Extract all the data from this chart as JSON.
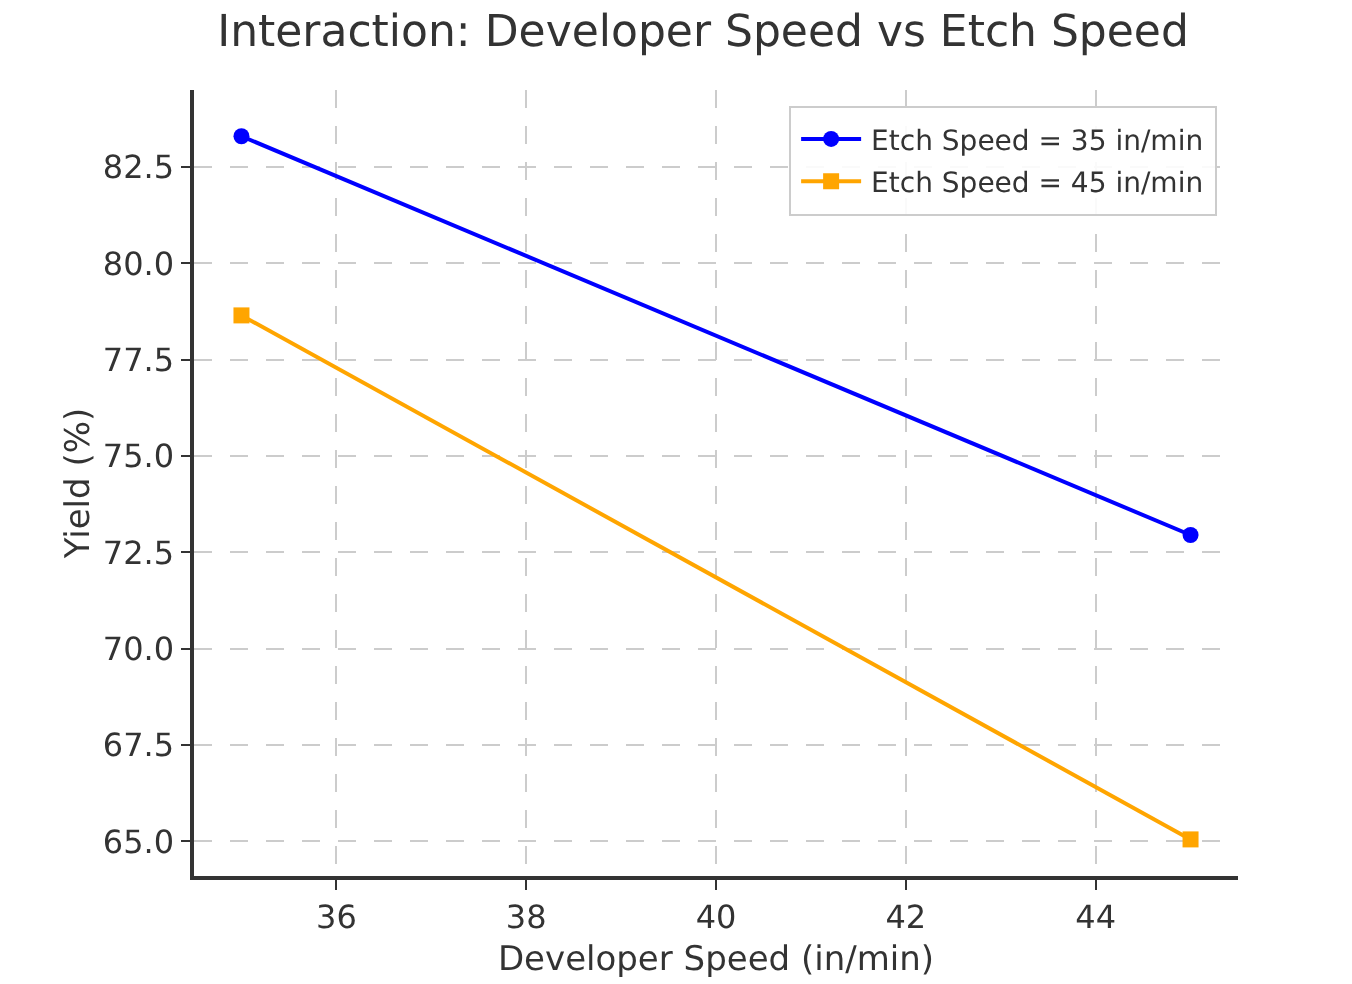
{
  "chart_data": {
    "type": "line",
    "title": "Interaction: Developer Speed vs Etch Speed",
    "xlabel": "Developer Speed (in/min)",
    "ylabel": "Yield (%)",
    "x": [
      35,
      45
    ],
    "series": [
      {
        "name": "Etch Speed = 35 in/min",
        "color": "#0000ff",
        "values": [
          83.3,
          72.95
        ],
        "marker": "circle"
      },
      {
        "name": "Etch Speed = 45 in/min",
        "color": "#ffa500",
        "values": [
          78.65,
          65.05
        ],
        "marker": "square"
      }
    ],
    "xlim": [
      34.5,
      45.5
    ],
    "xticks": [
      36,
      38,
      40,
      42,
      44
    ],
    "ylim": [
      64.1,
      84.5
    ],
    "yticks": [
      {
        "value": 65,
        "label": "65.0"
      },
      {
        "value": 67.5,
        "label": "67.5"
      },
      {
        "value": 70,
        "label": "70.0"
      },
      {
        "value": 72.5,
        "label": "72.5"
      },
      {
        "value": 75,
        "label": "75.0"
      },
      {
        "value": 77.5,
        "label": "77.5"
      },
      {
        "value": 80,
        "label": "80.0"
      },
      {
        "value": 82.5,
        "label": "82.5"
      }
    ],
    "grid": true,
    "legend": "top right",
    "line_style": "solid"
  }
}
